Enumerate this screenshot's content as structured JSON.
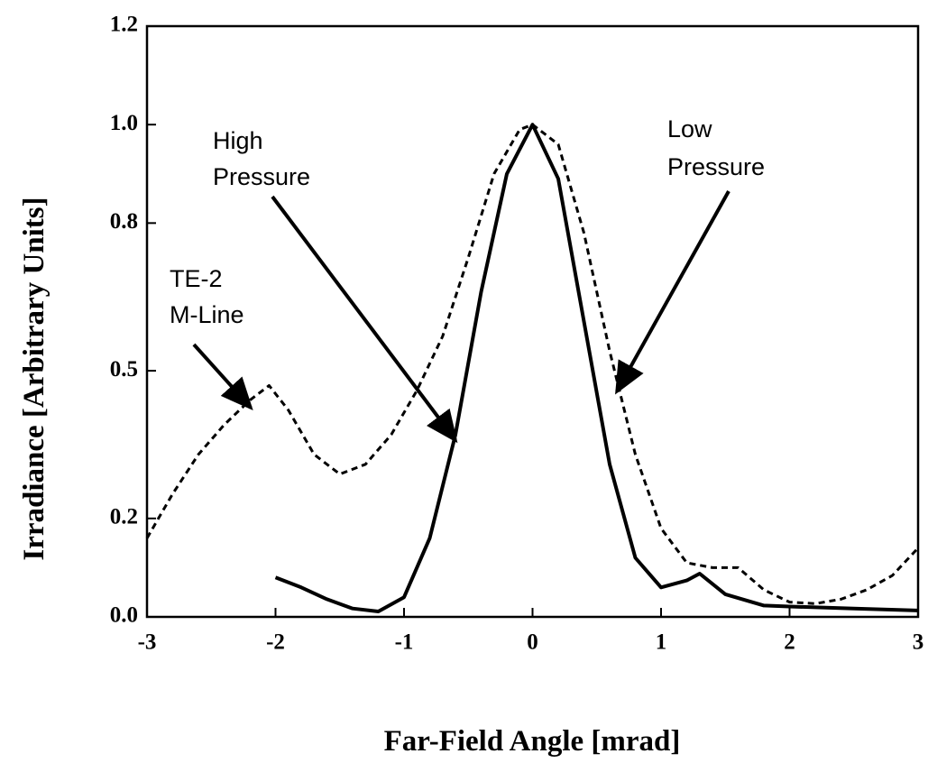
{
  "chart_data": {
    "type": "line",
    "xlabel": "Far-Field Angle [mrad]",
    "ylabel": "Irradiance [Arbitrary Units]",
    "xlim": [
      -3,
      3
    ],
    "xticks": [
      -3,
      -2,
      -1,
      0,
      1,
      2,
      3
    ],
    "ylim": [
      0,
      1.2
    ],
    "yticks": [
      {
        "value": 0,
        "label": "0.0"
      },
      0.2,
      0.5,
      0.8,
      {
        "value": 1,
        "label": "1.0"
      },
      1.2
    ],
    "series": [
      {
        "color": "#000000",
        "dash": false,
        "x": [
          -2,
          -1.8,
          -1.6,
          -1.4,
          -1.2,
          -1.0,
          -0.8,
          -0.6,
          -0.4,
          -0.2,
          0,
          0.2,
          0.4,
          0.6,
          0.8,
          1.0,
          1.2,
          1.3,
          1.5,
          1.8,
          2.0,
          2.5,
          3.0
        ],
        "values": [
          0.08,
          0.06,
          0.036,
          0.017,
          0.011,
          0.04,
          0.16,
          0.37,
          0.66,
          0.9,
          1.0,
          0.89,
          0.6,
          0.31,
          0.12,
          0.06,
          0.074,
          0.088,
          0.046,
          0.023,
          0.021,
          0.017,
          0.013
        ]
      },
      {
        "color": "#000000",
        "dash": true,
        "x": [
          -3,
          -2.8,
          -2.6,
          -2.4,
          -2.2,
          -2.05,
          -1.9,
          -1.7,
          -1.5,
          -1.3,
          -1.1,
          -0.9,
          -0.7,
          -0.5,
          -0.3,
          -0.1,
          0,
          0.2,
          0.4,
          0.6,
          0.8,
          1.0,
          1.2,
          1.4,
          1.6,
          1.8,
          2.0,
          2.2,
          2.4,
          2.6,
          2.8,
          3.0
        ],
        "values": [
          0.16,
          0.25,
          0.33,
          0.39,
          0.44,
          0.47,
          0.42,
          0.33,
          0.29,
          0.31,
          0.37,
          0.46,
          0.57,
          0.73,
          0.9,
          0.99,
          1.0,
          0.96,
          0.78,
          0.54,
          0.33,
          0.18,
          0.11,
          0.1,
          0.1,
          0.055,
          0.03,
          0.027,
          0.036,
          0.055,
          0.084,
          0.14
        ]
      }
    ],
    "annotations": [
      {
        "text": [
          "High",
          "Pressure"
        ]
      },
      {
        "text": [
          "Low",
          "Pressure"
        ]
      },
      {
        "text": [
          "TE-2",
          "M-Line"
        ]
      }
    ]
  }
}
